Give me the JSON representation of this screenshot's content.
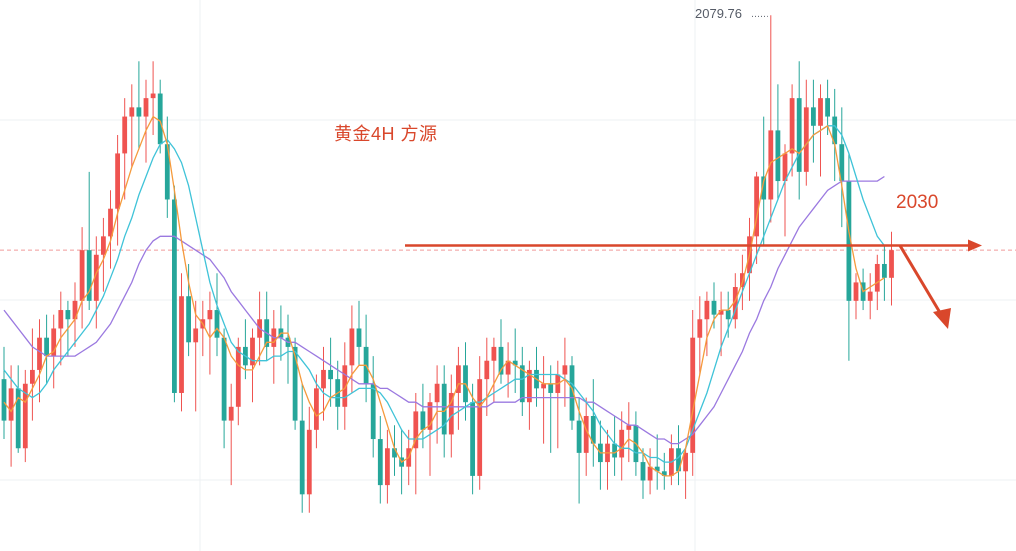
{
  "chart_data": {
    "type": "candlestick",
    "title": "黄金4H 方源",
    "colors": {
      "up": "#ef5350",
      "down": "#26a69a",
      "ma_fast": "#f59a3c",
      "ma_mid": "#3fc3d8",
      "ma_slow": "#9b79e0",
      "level_line": "#d9472b",
      "dashed_line": "#f19a9a",
      "grid": "#eef0f3"
    },
    "high_marker": {
      "value": 2079.76,
      "label": "2079.76"
    },
    "level": {
      "value": 2030,
      "label": "2030"
    },
    "ylim": [
      1965,
      2082
    ],
    "ohlc": [
      [
        2001,
        2008,
        1988,
        1992
      ],
      [
        1992,
        2004,
        1982,
        1999
      ],
      [
        1999,
        2004,
        1985,
        1986
      ],
      [
        1986,
        2003,
        1983,
        2000
      ],
      [
        2000,
        2012,
        1992,
        2003
      ],
      [
        2003,
        2014,
        1996,
        2010
      ],
      [
        2010,
        2015,
        2000,
        2006
      ],
      [
        2006,
        2015,
        1999,
        2012
      ],
      [
        2012,
        2020,
        2004,
        2016
      ],
      [
        2016,
        2018,
        2006,
        2014
      ],
      [
        2014,
        2022,
        2008,
        2018
      ],
      [
        2018,
        2034,
        2012,
        2029
      ],
      [
        2029,
        2046,
        2016,
        2018
      ],
      [
        2018,
        2032,
        2012,
        2028
      ],
      [
        2028,
        2036,
        2020,
        2032
      ],
      [
        2032,
        2042,
        2025,
        2038
      ],
      [
        2038,
        2054,
        2030,
        2050
      ],
      [
        2050,
        2062,
        2040,
        2058
      ],
      [
        2058,
        2065,
        2047,
        2060
      ],
      [
        2060,
        2070,
        2051,
        2058
      ],
      [
        2058,
        2066,
        2048,
        2062
      ],
      [
        2062,
        2070,
        2054,
        2063
      ],
      [
        2063,
        2066,
        2050,
        2052
      ],
      [
        2052,
        2058,
        2036,
        2040
      ],
      [
        2040,
        2043,
        1996,
        1998
      ],
      [
        1998,
        2024,
        1994,
        2019
      ],
      [
        2019,
        2026,
        2006,
        2009
      ],
      [
        2009,
        2018,
        1994,
        2012
      ],
      [
        2012,
        2018,
        2006,
        2014
      ],
      [
        2014,
        2020,
        2002,
        2016
      ],
      [
        2016,
        2024,
        2006,
        2010
      ],
      [
        2010,
        2012,
        1986,
        1992
      ],
      [
        1992,
        2000,
        1978,
        1995
      ],
      [
        1995,
        2010,
        1991,
        2008
      ],
      [
        2008,
        2014,
        2001,
        2004
      ],
      [
        2004,
        2012,
        1996,
        2010
      ],
      [
        2010,
        2020,
        2004,
        2014
      ],
      [
        2014,
        2020,
        2005,
        2008
      ],
      [
        2008,
        2016,
        2000,
        2012
      ],
      [
        2012,
        2017,
        2005,
        2010
      ],
      [
        2010,
        2015,
        2000,
        2008
      ],
      [
        2008,
        2010,
        1990,
        1992
      ],
      [
        1992,
        2000,
        1972,
        1976
      ],
      [
        1976,
        1995,
        1972,
        1990
      ],
      [
        1990,
        2002,
        1986,
        1999
      ],
      [
        1999,
        2008,
        1992,
        2003
      ],
      [
        2003,
        2010,
        1995,
        2001
      ],
      [
        2001,
        2005,
        1990,
        1995
      ],
      [
        1995,
        2009,
        1990,
        2004
      ],
      [
        2004,
        2017,
        1998,
        2012
      ],
      [
        2012,
        2018,
        2004,
        2008
      ],
      [
        2008,
        2015,
        1996,
        2000
      ],
      [
        2000,
        2006,
        1984,
        1988
      ],
      [
        1988,
        1993,
        1974,
        1978
      ],
      [
        1978,
        1990,
        1974,
        1986
      ],
      [
        1986,
        1991,
        1980,
        1984
      ],
      [
        1984,
        1990,
        1976,
        1982
      ],
      [
        1982,
        1990,
        1978,
        1986
      ],
      [
        1986,
        1998,
        1976,
        1994
      ],
      [
        1994,
        2000,
        1986,
        1990
      ],
      [
        1990,
        1998,
        1980,
        1996
      ],
      [
        1996,
        2004,
        1987,
        2000
      ],
      [
        2000,
        2004,
        1984,
        1989
      ],
      [
        1989,
        2002,
        1984,
        1998
      ],
      [
        1998,
        2008,
        1990,
        2004
      ],
      [
        2004,
        2009,
        1992,
        1996
      ],
      [
        1996,
        2000,
        1976,
        1980
      ],
      [
        1980,
        2006,
        1977,
        2001
      ],
      [
        2001,
        2010,
        1993,
        2005
      ],
      [
        2005,
        2010,
        1996,
        2008
      ],
      [
        2008,
        2014,
        2000,
        2002
      ],
      [
        2002,
        2009,
        1997,
        2005
      ],
      [
        2005,
        2012,
        1998,
        2004
      ],
      [
        2004,
        2008,
        1993,
        1996
      ],
      [
        1996,
        2005,
        1990,
        2003
      ],
      [
        2003,
        2008,
        1995,
        1999
      ],
      [
        1999,
        2006,
        1987,
        2000
      ],
      [
        2000,
        2004,
        1985,
        1998
      ],
      [
        1998,
        2005,
        1986,
        2002
      ],
      [
        2002,
        2010,
        1995,
        2004
      ],
      [
        2004,
        2006,
        1990,
        1992
      ],
      [
        1992,
        1997,
        1974,
        1985
      ],
      [
        1985,
        1997,
        1980,
        1993
      ],
      [
        1993,
        2001,
        1982,
        1987
      ],
      [
        1987,
        1992,
        1977,
        1983
      ],
      [
        1983,
        1990,
        1977,
        1987
      ],
      [
        1987,
        1993,
        1980,
        1984
      ],
      [
        1984,
        1994,
        1979,
        1990
      ],
      [
        1990,
        1996,
        1983,
        1991
      ],
      [
        1991,
        1994,
        1980,
        1983
      ],
      [
        1983,
        1986,
        1975,
        1979
      ],
      [
        1979,
        1986,
        1976,
        1982
      ],
      [
        1982,
        1989,
        1977,
        1981
      ],
      [
        1981,
        1985,
        1977,
        1980
      ],
      [
        1980,
        1989,
        1978,
        1986
      ],
      [
        1986,
        1991,
        1978,
        1981
      ],
      [
        1981,
        1986,
        1975,
        1985
      ],
      [
        1985,
        2016,
        1980,
        2010
      ],
      [
        2010,
        2019,
        2002,
        2014
      ],
      [
        2014,
        2020,
        2006,
        2018
      ],
      [
        2018,
        2022,
        2012,
        2015
      ],
      [
        2015,
        2020,
        2006,
        2016
      ],
      [
        2016,
        2020,
        2010,
        2014
      ],
      [
        2014,
        2024,
        2012,
        2021
      ],
      [
        2021,
        2028,
        2016,
        2024
      ],
      [
        2024,
        2036,
        2018,
        2032
      ],
      [
        2032,
        2046,
        2026,
        2045
      ],
      [
        2045,
        2058,
        2030,
        2040
      ],
      [
        2040,
        2080,
        2035,
        2055
      ],
      [
        2055,
        2065,
        2040,
        2044
      ],
      [
        2044,
        2052,
        2032,
        2050
      ],
      [
        2050,
        2065,
        2045,
        2062
      ],
      [
        2062,
        2070,
        2040,
        2046
      ],
      [
        2046,
        2066,
        2043,
        2060
      ],
      [
        2060,
        2066,
        2048,
        2056
      ],
      [
        2056,
        2065,
        2045,
        2062
      ],
      [
        2062,
        2066,
        2054,
        2058
      ],
      [
        2058,
        2064,
        2044,
        2052
      ],
      [
        2052,
        2060,
        2034,
        2044
      ],
      [
        2044,
        2050,
        2005,
        2018
      ],
      [
        2018,
        2024,
        2014,
        2022
      ],
      [
        2022,
        2025,
        2016,
        2018
      ],
      [
        2018,
        2024,
        2014,
        2020
      ],
      [
        2020,
        2028,
        2016,
        2026
      ],
      [
        2026,
        2030,
        2018,
        2023
      ],
      [
        2023,
        2033,
        2017,
        2029
      ]
    ],
    "ma_fast": [
      1996,
      1994,
      1997,
      1996,
      1999,
      2002,
      2006,
      2007,
      2010,
      2012,
      2014,
      2018,
      2020,
      2024,
      2027,
      2031,
      2037,
      2042,
      2047,
      2051,
      2055,
      2058,
      2057,
      2052,
      2042,
      2031,
      2022,
      2015,
      2013,
      2010,
      2012,
      2010,
      2006,
      2004,
      2003,
      2003,
      2006,
      2009,
      2009,
      2011,
      2011,
      2006,
      2000,
      1996,
      1993,
      1994,
      1997,
      1998,
      1999,
      2002,
      2004,
      2004,
      2001,
      1996,
      1991,
      1986,
      1983,
      1984,
      1988,
      1990,
      1991,
      1994,
      1994,
      1996,
      2000,
      2000,
      1997,
      1995,
      1997,
      2000,
      2003,
      2005,
      2004,
      2003,
      2002,
      2001,
      2000,
      2000,
      2000,
      2001,
      1999,
      1994,
      1990,
      1987,
      1985,
      1985,
      1985,
      1986,
      1988,
      1987,
      1985,
      1982,
      1981,
      1980,
      1980,
      1981,
      1986,
      1994,
      2002,
      2010,
      2014,
      2016,
      2016,
      2018,
      2022,
      2028,
      2036,
      2044,
      2048,
      2049,
      2050,
      2051,
      2050,
      2052,
      2054,
      2055,
      2056,
      2052,
      2043,
      2033,
      2025,
      2020,
      2021,
      2022,
      2023
    ],
    "ma_mid": [
      2003,
      2001,
      1999,
      1998,
      1997,
      1998,
      2000,
      2003,
      2005,
      2007,
      2009,
      2011,
      2013,
      2016,
      2019,
      2023,
      2027,
      2032,
      2036,
      2041,
      2045,
      2049,
      2052,
      2053,
      2051,
      2048,
      2043,
      2036,
      2029,
      2022,
      2017,
      2013,
      2009,
      2007,
      2006,
      2005,
      2005,
      2005,
      2006,
      2006,
      2007,
      2007,
      2005,
      2003,
      2000,
      1998,
      1997,
      1997,
      1997,
      1998,
      1999,
      1999,
      1999,
      1998,
      1996,
      1993,
      1990,
      1988,
      1988,
      1988,
      1989,
      1990,
      1991,
      1993,
      1994,
      1995,
      1996,
      1996,
      1997,
      1998,
      1999,
      2000,
      2001,
      2001,
      2002,
      2002,
      2002,
      2002,
      2002,
      2001,
      2000,
      1998,
      1996,
      1994,
      1991,
      1989,
      1987,
      1986,
      1986,
      1985,
      1985,
      1984,
      1984,
      1983,
      1983,
      1984,
      1986,
      1990,
      1994,
      1998,
      2003,
      2008,
      2012,
      2016,
      2020,
      2024,
      2028,
      2032,
      2036,
      2040,
      2044,
      2047,
      2050,
      2052,
      2054,
      2055,
      2056,
      2056,
      2054,
      2050,
      2045,
      2040,
      2036,
      2032,
      2030
    ],
    "ma_slow": [
      2016,
      2014,
      2012,
      2010,
      2008,
      2007,
      2006,
      2006,
      2006,
      2006,
      2006,
      2007,
      2008,
      2009,
      2011,
      2013,
      2016,
      2019,
      2022,
      2026,
      2029,
      2031,
      2032,
      2032,
      2032,
      2031,
      2030,
      2029,
      2028,
      2027,
      2025,
      2023,
      2020,
      2018,
      2016,
      2014,
      2012,
      2011,
      2010,
      2010,
      2009,
      2009,
      2008,
      2007,
      2006,
      2005,
      2004,
      2003,
      2002,
      2001,
      2000,
      2000,
      2000,
      1999,
      1999,
      1998,
      1997,
      1996,
      1996,
      1995,
      1995,
      1995,
      1995,
      1995,
      1995,
      1995,
      1995,
      1995,
      1995,
      1996,
      1996,
      1996,
      1996,
      1997,
      1997,
      1997,
      1997,
      1997,
      1997,
      1997,
      1997,
      1997,
      1996,
      1996,
      1995,
      1994,
      1993,
      1992,
      1991,
      1991,
      1990,
      1989,
      1988,
      1988,
      1987,
      1987,
      1988,
      1989,
      1991,
      1993,
      1995,
      1998,
      2001,
      2004,
      2007,
      2011,
      2014,
      2018,
      2021,
      2025,
      2028,
      2031,
      2034,
      2036,
      2038,
      2040,
      2042,
      2043,
      2044,
      2044,
      2044,
      2044,
      2044,
      2044,
      2045
    ]
  }
}
